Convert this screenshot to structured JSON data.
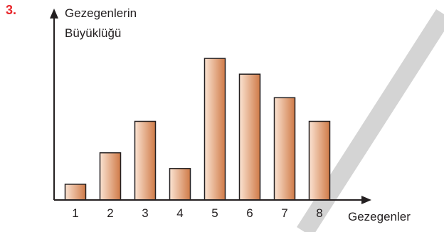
{
  "question_number": "3.",
  "colors": {
    "question_number": "#e8262b",
    "axis": "#231f20",
    "bar_stroke": "#231f20",
    "bar_light": "#fbe3d2",
    "bar_dark": "#cf7a47",
    "watermark": "#d4d4d4"
  },
  "chart_data": {
    "type": "bar",
    "ylabel": [
      "Gezegenlerin",
      "Büyüklüğü"
    ],
    "xlabel": "Gezegenler",
    "categories": [
      "1",
      "2",
      "3",
      "4",
      "5",
      "6",
      "7",
      "8"
    ],
    "values": [
      1,
      3,
      5,
      2,
      9,
      8,
      6.5,
      5
    ],
    "ylim": [
      0,
      10
    ],
    "grid": false,
    "legend": "none"
  }
}
